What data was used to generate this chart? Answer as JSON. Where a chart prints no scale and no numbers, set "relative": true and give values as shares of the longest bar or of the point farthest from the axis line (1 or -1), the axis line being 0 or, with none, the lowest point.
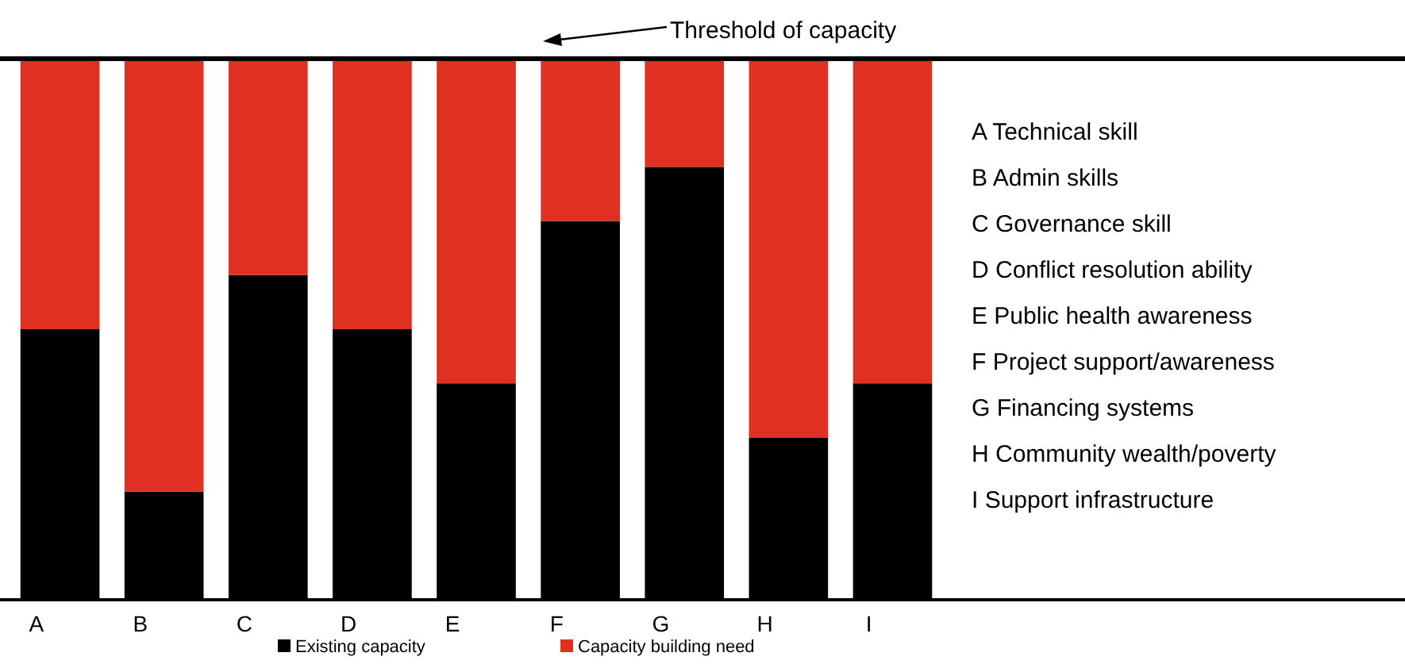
{
  "chart_data": {
    "type": "bar",
    "relative": true,
    "stacked": true,
    "categories": [
      "A",
      "B",
      "C",
      "D",
      "E",
      "F",
      "G",
      "H",
      "I"
    ],
    "series": [
      {
        "name": "Existing capacity",
        "color": "#000000",
        "values": [
          0.5,
          0.2,
          0.6,
          0.5,
          0.4,
          0.7,
          0.8,
          0.3,
          0.4
        ]
      },
      {
        "name": "Capacity building need",
        "color": "#e03022",
        "values": [
          0.5,
          0.8,
          0.4,
          0.5,
          0.6,
          0.3,
          0.2,
          0.7,
          0.6
        ]
      }
    ],
    "ref_lines": [
      {
        "axis": "y",
        "value": 1,
        "label": "Threshold of capacity",
        "color": "#000000"
      }
    ],
    "annotations": [
      "A  Technical skill",
      "B  Admin skills",
      "C  Governance skill",
      "D  Conflict resolution ability",
      "E  Public health awareness",
      "F  Project support/awareness",
      "G Financing systems",
      "H Community wealth/poverty",
      "I   Support infrastructure"
    ],
    "legend": "bottom"
  }
}
